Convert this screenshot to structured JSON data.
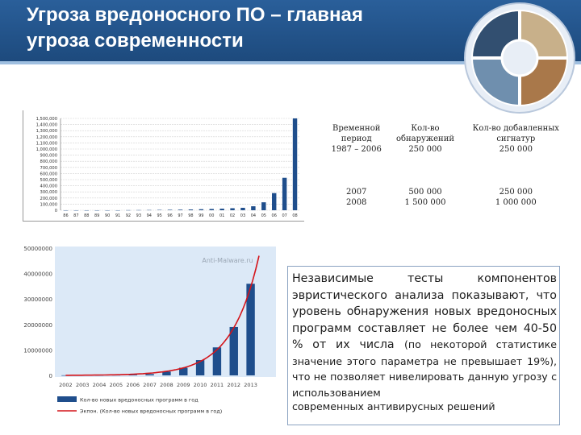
{
  "slide": {
    "title_line1": "Угроза вредоносного ПО – главная",
    "title_line2": "угроза современности",
    "accent_color": "#1d4a7d"
  },
  "logo": {
    "icon": "circular-photo-collage-logo"
  },
  "table": {
    "header": {
      "col1": [
        "Временной",
        "период"
      ],
      "col2": [
        "Кол-во",
        "обнаружений"
      ],
      "col3": [
        "Кол-во добавленных",
        "сигнатур"
      ]
    },
    "rows": [
      {
        "period": [
          "1987 – 2006"
        ],
        "detections": [
          "250 000"
        ],
        "signatures": [
          "250 000"
        ]
      },
      {
        "period": [
          "2007",
          "2008"
        ],
        "detections": [
          "500 000",
          "1 500 000"
        ],
        "signatures": [
          "250 000",
          "1 000 000"
        ]
      }
    ]
  },
  "text": {
    "main": "Независимые тесты компонентов эвристического анализа показывают, что уровень обнаружения новых вредоносных программ составляет не более чем 40-50 % от их числа",
    "continuation": "(по некоторой статистике значение этого параметра не превышает 19%), что не позволяет нивелировать данную угрозу с использованием",
    "last_line": "современных антивирусных решений"
  },
  "chart_data": [
    {
      "type": "bar",
      "ytick_labels": [
        "1,500,000",
        "1,400,000",
        "1,300,000",
        "1,200,000",
        "1,100,000",
        "1,000,000",
        "900,000",
        "800,000",
        "700,000",
        "600,000",
        "500,000",
        "400,000",
        "300,000",
        "200,000",
        "100,000",
        "0"
      ],
      "ylim": [
        0,
        1500000
      ],
      "categories": [
        "86",
        "87",
        "88",
        "89",
        "90",
        "91",
        "92",
        "93",
        "94",
        "95",
        "96",
        "97",
        "98",
        "99",
        "00",
        "01",
        "02",
        "03",
        "04",
        "05",
        "06",
        "07",
        "08"
      ],
      "values": [
        0,
        0,
        0,
        0,
        0,
        0,
        2000,
        3000,
        4000,
        6000,
        8000,
        10000,
        13000,
        17000,
        21000,
        26000,
        33000,
        40000,
        65000,
        130000,
        280000,
        530000,
        1500000
      ],
      "bar_color": "#1f4e8c",
      "grid": true
    },
    {
      "type": "bar",
      "watermark": "Anti-Malware.ru",
      "ytick_labels": [
        "50000000",
        "40000000",
        "30000000",
        "20000000",
        "10000000",
        "0"
      ],
      "ylim": [
        0,
        50000000
      ],
      "categories": [
        "2002",
        "2003",
        "2004",
        "2005",
        "2006",
        "2007",
        "2008",
        "2009",
        "2010",
        "2011",
        "2012",
        "2013"
      ],
      "values": [
        50000,
        70000,
        100000,
        150000,
        250000,
        500000,
        1500000,
        3000000,
        6000000,
        11000000,
        19000000,
        36000000
      ],
      "trend": {
        "x_start": 2002,
        "x_end": 2013.5,
        "y_end": 47000000,
        "color": "#d4141a"
      },
      "legend": [
        {
          "label": "Кол-во новых вредоносных программ в год",
          "color": "#1f4e8c"
        },
        {
          "label": "Экпон. (Кол-во новых вредоносных программ в год)",
          "color": "#d4141a"
        }
      ],
      "legend_position": "bottom",
      "background_color": "#dce9f7"
    }
  ]
}
